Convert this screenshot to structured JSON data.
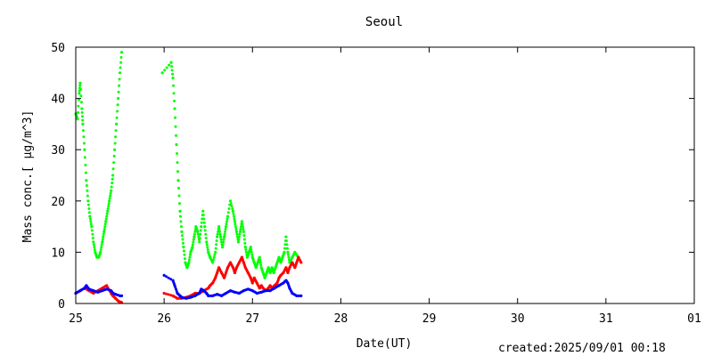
{
  "chart_data": {
    "type": "scatter",
    "title": "Seoul",
    "xlabel": "Date(UT)",
    "ylabel": "Mass conc.[ μg/m^3]",
    "x_ticks": [
      "25",
      "26",
      "27",
      "28",
      "29",
      "30",
      "31",
      "01"
    ],
    "y_ticks": [
      0,
      10,
      20,
      30,
      40,
      50
    ],
    "xlim": [
      25,
      32
    ],
    "ylim": [
      0,
      50
    ],
    "grid": false,
    "series": [
      {
        "color": "#00ff00",
        "points": [
          [
            25.0,
            37
          ],
          [
            25.02,
            36
          ],
          [
            25.04,
            41
          ],
          [
            25.05,
            43
          ],
          [
            25.07,
            38
          ],
          [
            25.08,
            35
          ],
          [
            25.1,
            30
          ],
          [
            25.12,
            24
          ],
          [
            25.14,
            20
          ],
          [
            25.16,
            17
          ],
          [
            25.18,
            15
          ],
          [
            25.2,
            12
          ],
          [
            25.22,
            10
          ],
          [
            25.24,
            9
          ],
          [
            25.26,
            9
          ],
          [
            25.28,
            10
          ],
          [
            25.3,
            12
          ],
          [
            25.32,
            14
          ],
          [
            25.34,
            16
          ],
          [
            25.36,
            18
          ],
          [
            25.38,
            20
          ],
          [
            25.4,
            22
          ],
          [
            25.42,
            25
          ],
          [
            25.44,
            30
          ],
          [
            25.46,
            35
          ],
          [
            25.48,
            40
          ],
          [
            25.5,
            45
          ],
          [
            25.52,
            49
          ],
          [
            25.98,
            45
          ],
          [
            26.08,
            47
          ],
          [
            26.1,
            44
          ],
          [
            26.12,
            38
          ],
          [
            26.14,
            31
          ],
          [
            26.16,
            24
          ],
          [
            26.18,
            18
          ],
          [
            26.2,
            14
          ],
          [
            26.22,
            11
          ],
          [
            26.24,
            8
          ],
          [
            26.26,
            7
          ],
          [
            26.28,
            8
          ],
          [
            26.3,
            10
          ],
          [
            26.32,
            11
          ],
          [
            26.34,
            13
          ],
          [
            26.36,
            15
          ],
          [
            26.38,
            14
          ],
          [
            26.4,
            12
          ],
          [
            26.42,
            15
          ],
          [
            26.44,
            18
          ],
          [
            26.46,
            15
          ],
          [
            26.48,
            12
          ],
          [
            26.5,
            10
          ],
          [
            26.52,
            9
          ],
          [
            26.55,
            8
          ],
          [
            26.58,
            10
          ],
          [
            26.6,
            13
          ],
          [
            26.62,
            15
          ],
          [
            26.64,
            13
          ],
          [
            26.66,
            11
          ],
          [
            26.68,
            13
          ],
          [
            26.7,
            15
          ],
          [
            26.72,
            17
          ],
          [
            26.75,
            20
          ],
          [
            26.78,
            18
          ],
          [
            26.8,
            16
          ],
          [
            26.82,
            14
          ],
          [
            26.84,
            12
          ],
          [
            26.86,
            14
          ],
          [
            26.88,
            16
          ],
          [
            26.9,
            14
          ],
          [
            26.92,
            11
          ],
          [
            26.94,
            9
          ],
          [
            26.96,
            10
          ],
          [
            26.98,
            11
          ],
          [
            27.0,
            9
          ],
          [
            27.02,
            8
          ],
          [
            27.04,
            7
          ],
          [
            27.06,
            8
          ],
          [
            27.08,
            9
          ],
          [
            27.1,
            7
          ],
          [
            27.12,
            6
          ],
          [
            27.14,
            5
          ],
          [
            27.16,
            6
          ],
          [
            27.18,
            7
          ],
          [
            27.2,
            6
          ],
          [
            27.22,
            7
          ],
          [
            27.24,
            6
          ],
          [
            27.26,
            7
          ],
          [
            27.28,
            8
          ],
          [
            27.3,
            9
          ],
          [
            27.32,
            8
          ],
          [
            27.34,
            9
          ],
          [
            27.36,
            10
          ],
          [
            27.38,
            13
          ],
          [
            27.4,
            10
          ],
          [
            27.42,
            8
          ],
          [
            27.45,
            9
          ],
          [
            27.48,
            10
          ],
          [
            27.52,
            9
          ]
        ]
      },
      {
        "color": "#ff0000",
        "points": [
          [
            25.0,
            2
          ],
          [
            25.05,
            2.5
          ],
          [
            25.1,
            3
          ],
          [
            25.15,
            2.5
          ],
          [
            25.2,
            2
          ],
          [
            25.25,
            2.5
          ],
          [
            25.3,
            3
          ],
          [
            25.35,
            3.5
          ],
          [
            25.4,
            2
          ],
          [
            25.42,
            1.5
          ],
          [
            25.45,
            1
          ],
          [
            25.48,
            0.5
          ],
          [
            25.5,
            0.3
          ],
          [
            25.52,
            0.2
          ],
          [
            26.0,
            2
          ],
          [
            26.1,
            1.5
          ],
          [
            26.15,
            1
          ],
          [
            26.2,
            1
          ],
          [
            26.25,
            1.2
          ],
          [
            26.3,
            1.5
          ],
          [
            26.35,
            2
          ],
          [
            26.4,
            2
          ],
          [
            26.45,
            2.5
          ],
          [
            26.5,
            3
          ],
          [
            26.52,
            3.5
          ],
          [
            26.55,
            4
          ],
          [
            26.58,
            5
          ],
          [
            26.6,
            6
          ],
          [
            26.62,
            7
          ],
          [
            26.65,
            6
          ],
          [
            26.68,
            5
          ],
          [
            26.7,
            6
          ],
          [
            26.72,
            7
          ],
          [
            26.75,
            8
          ],
          [
            26.78,
            7
          ],
          [
            26.8,
            6
          ],
          [
            26.82,
            7
          ],
          [
            26.85,
            8
          ],
          [
            26.88,
            9
          ],
          [
            26.9,
            8
          ],
          [
            26.92,
            7
          ],
          [
            26.95,
            6
          ],
          [
            26.98,
            5
          ],
          [
            27.0,
            4
          ],
          [
            27.02,
            5
          ],
          [
            27.05,
            4
          ],
          [
            27.08,
            3
          ],
          [
            27.1,
            3.5
          ],
          [
            27.12,
            3
          ],
          [
            27.15,
            2.5
          ],
          [
            27.18,
            3
          ],
          [
            27.2,
            3.5
          ],
          [
            27.22,
            3
          ],
          [
            27.25,
            3.5
          ],
          [
            27.28,
            4
          ],
          [
            27.3,
            5
          ],
          [
            27.32,
            5.5
          ],
          [
            27.35,
            6
          ],
          [
            27.38,
            7
          ],
          [
            27.4,
            6
          ],
          [
            27.42,
            7
          ],
          [
            27.45,
            8
          ],
          [
            27.48,
            7
          ],
          [
            27.5,
            8
          ],
          [
            27.52,
            9
          ],
          [
            27.55,
            8
          ]
        ]
      },
      {
        "color": "#0000ff",
        "points": [
          [
            25.0,
            2
          ],
          [
            25.05,
            2.5
          ],
          [
            25.1,
            3
          ],
          [
            25.12,
            3.5
          ],
          [
            25.15,
            2.8
          ],
          [
            25.2,
            2.5
          ],
          [
            25.25,
            2.2
          ],
          [
            25.3,
            2.5
          ],
          [
            25.35,
            2.8
          ],
          [
            25.4,
            2.5
          ],
          [
            25.42,
            2
          ],
          [
            25.45,
            1.8
          ],
          [
            25.5,
            1.5
          ],
          [
            25.52,
            1.5
          ],
          [
            26.0,
            5.5
          ],
          [
            26.1,
            4.5
          ],
          [
            26.12,
            3.5
          ],
          [
            26.15,
            2
          ],
          [
            26.18,
            1.5
          ],
          [
            26.2,
            1.2
          ],
          [
            26.25,
            1
          ],
          [
            26.3,
            1.2
          ],
          [
            26.35,
            1.5
          ],
          [
            26.4,
            2
          ],
          [
            26.42,
            2.8
          ],
          [
            26.45,
            2.5
          ],
          [
            26.48,
            2
          ],
          [
            26.5,
            1.5
          ],
          [
            26.55,
            1.5
          ],
          [
            26.6,
            1.8
          ],
          [
            26.65,
            1.5
          ],
          [
            26.7,
            2
          ],
          [
            26.75,
            2.5
          ],
          [
            26.8,
            2.2
          ],
          [
            26.85,
            2
          ],
          [
            26.9,
            2.5
          ],
          [
            26.95,
            2.8
          ],
          [
            27.0,
            2.5
          ],
          [
            27.05,
            2
          ],
          [
            27.1,
            2.2
          ],
          [
            27.15,
            2.5
          ],
          [
            27.2,
            2.5
          ],
          [
            27.25,
            3
          ],
          [
            27.3,
            3.5
          ],
          [
            27.35,
            4
          ],
          [
            27.38,
            4.5
          ],
          [
            27.4,
            4
          ],
          [
            27.42,
            3
          ],
          [
            27.45,
            2
          ],
          [
            27.5,
            1.5
          ],
          [
            27.55,
            1.5
          ]
        ]
      }
    ]
  },
  "footer": {
    "created": "created:2025/09/01 00:18"
  }
}
